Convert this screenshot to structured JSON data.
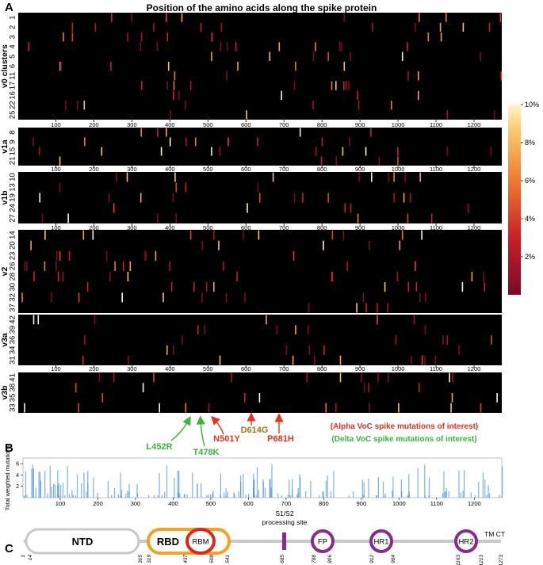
{
  "figure": {
    "panel_a_label": "A",
    "panel_b_label": "B",
    "panel_c_label": "C",
    "title": "Position of the amino acids along the spike protein"
  },
  "colors": {
    "heat_bg": "#000000",
    "heat_low": "#8b0a1e",
    "heat_mid": "#e8602c",
    "heat_high": "#fff2b0",
    "alpha": "#e8321e",
    "delta": "#3cb43c",
    "d614g": "#a07a1a",
    "bar": "#4a90e2",
    "domain_gray": "#c8c8c8",
    "rbd_orange": "#f5a21c",
    "rbm_red": "#e0261a",
    "purple": "#8a2a8f"
  },
  "chart_data": [
    {
      "type": "heatmap",
      "xlim": [
        1,
        1273
      ],
      "x_ticks": [
        "100",
        "200",
        "300",
        "400",
        "500",
        "600",
        "700",
        "800",
        "900",
        "1000",
        "1100",
        "1200"
      ],
      "colorbar": {
        "ticks": [
          "10%",
          "8%",
          "6%",
          "4%",
          "2%"
        ],
        "range": [
          0,
          10
        ]
      },
      "groups": [
        {
          "name": "v0 clusters",
          "rows": [
            "1",
            "2",
            "3",
            "4",
            "5",
            "6",
            "11",
            "17",
            "16",
            "22",
            "25"
          ]
        },
        {
          "name": "v1a",
          "rows": [
            "8",
            "9",
            "15",
            "21"
          ]
        },
        {
          "name": "v1b",
          "rows": [
            "10",
            "13",
            "19",
            "24",
            "27"
          ]
        },
        {
          "name": "v2",
          "rows": [
            "14",
            "20",
            "23",
            "26",
            "28",
            "30",
            "32",
            "37"
          ]
        },
        {
          "name": "v3a",
          "rows": [
            "42",
            "39",
            "36",
            "34",
            "31"
          ]
        },
        {
          "name": "v3b",
          "rows": [
            "41",
            "38",
            "35",
            "33"
          ]
        }
      ]
    },
    {
      "type": "bar",
      "ylabel": "Total weighted mutations",
      "y_ticks": [
        "2",
        "4",
        "6"
      ],
      "ylim": [
        0,
        7
      ],
      "x_ticks": [
        "100",
        "200",
        "300",
        "400",
        "500",
        "600",
        "700",
        "800",
        "900",
        "1000",
        "1100",
        "1200"
      ],
      "xlim": [
        1,
        1273
      ]
    }
  ],
  "mutations": {
    "alpha_legend": "(Alpha VoC spike mutations of interest)",
    "delta_legend": "(Delta VoC spike mutations of interest)",
    "items": [
      {
        "label": "L452R",
        "pos": 452,
        "group": "delta"
      },
      {
        "label": "T478K",
        "pos": 478,
        "group": "delta"
      },
      {
        "label": "N501Y",
        "pos": 501,
        "group": "alpha"
      },
      {
        "label": "D614G",
        "pos": 614,
        "group": "both"
      },
      {
        "label": "P681H",
        "pos": 681,
        "group": "alpha"
      }
    ]
  },
  "domains": {
    "ntd": "NTD",
    "rbd": "RBD",
    "rbm": "RBM",
    "fp": "FP",
    "hr1": "HR1",
    "hr2": "HR2",
    "tm_ct": "TM CT",
    "s1s2_line1": "S1/S2",
    "s1s2_line2": "processing site",
    "positions": [
      "1",
      "14",
      "305",
      "319",
      "437",
      "508",
      "541",
      "685",
      "788",
      "806",
      "912",
      "984",
      "1163",
      "1213",
      "1273"
    ]
  }
}
